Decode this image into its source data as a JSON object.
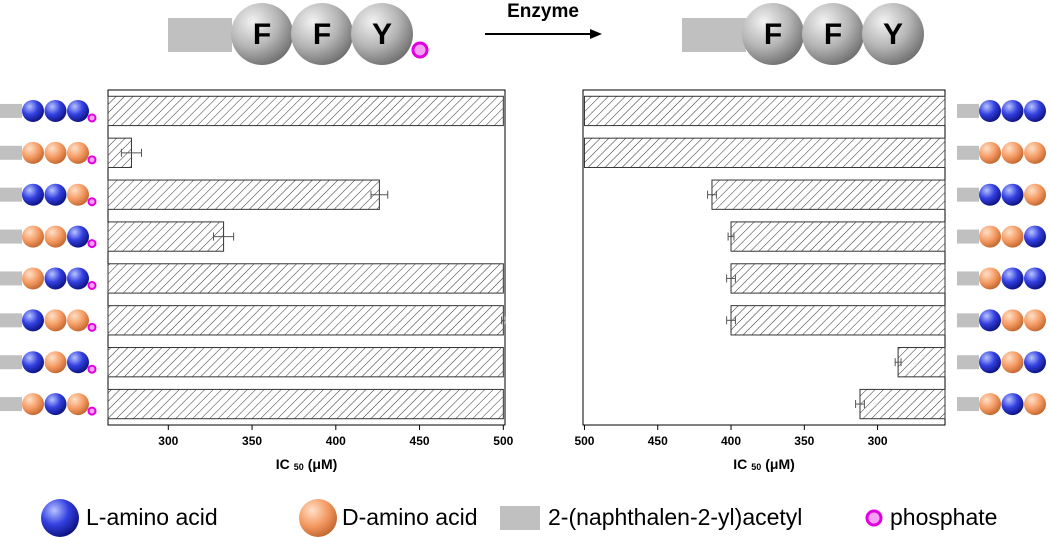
{
  "scheme": {
    "before": [
      "F",
      "F",
      "Y"
    ],
    "arrow_label": "Enzyme",
    "after": [
      "F",
      "F",
      "Y"
    ]
  },
  "chart_data": [
    {
      "type": "bar",
      "orientation": "horizontal",
      "color": "#333333",
      "values": [
        500,
        278,
        426,
        333,
        500,
        500,
        500,
        500
      ],
      "errors": [
        0,
        6,
        5,
        6,
        0,
        1,
        0,
        0
      ],
      "xlim": [
        264,
        501
      ],
      "xticks": [
        300,
        350,
        400,
        450,
        500
      ],
      "x_label": [
        "IC",
        "50",
        "(μM)"
      ]
    },
    {
      "type": "bar",
      "orientation": "horizontal",
      "color": "#333333",
      "values": [
        500,
        500,
        413,
        400,
        400,
        400,
        286,
        312
      ],
      "errors": [
        0,
        0,
        3,
        2,
        3,
        3,
        2,
        3
      ],
      "xlim": [
        501,
        254
      ],
      "xticks": [
        500,
        450,
        400,
        350,
        300
      ],
      "x_label": [
        "IC",
        "50",
        "(μM)"
      ]
    }
  ],
  "legend": [
    "L-amino acid",
    "D-amino acid",
    "2-(naphthalen-2-yl)acetyl",
    "phosphate"
  ]
}
